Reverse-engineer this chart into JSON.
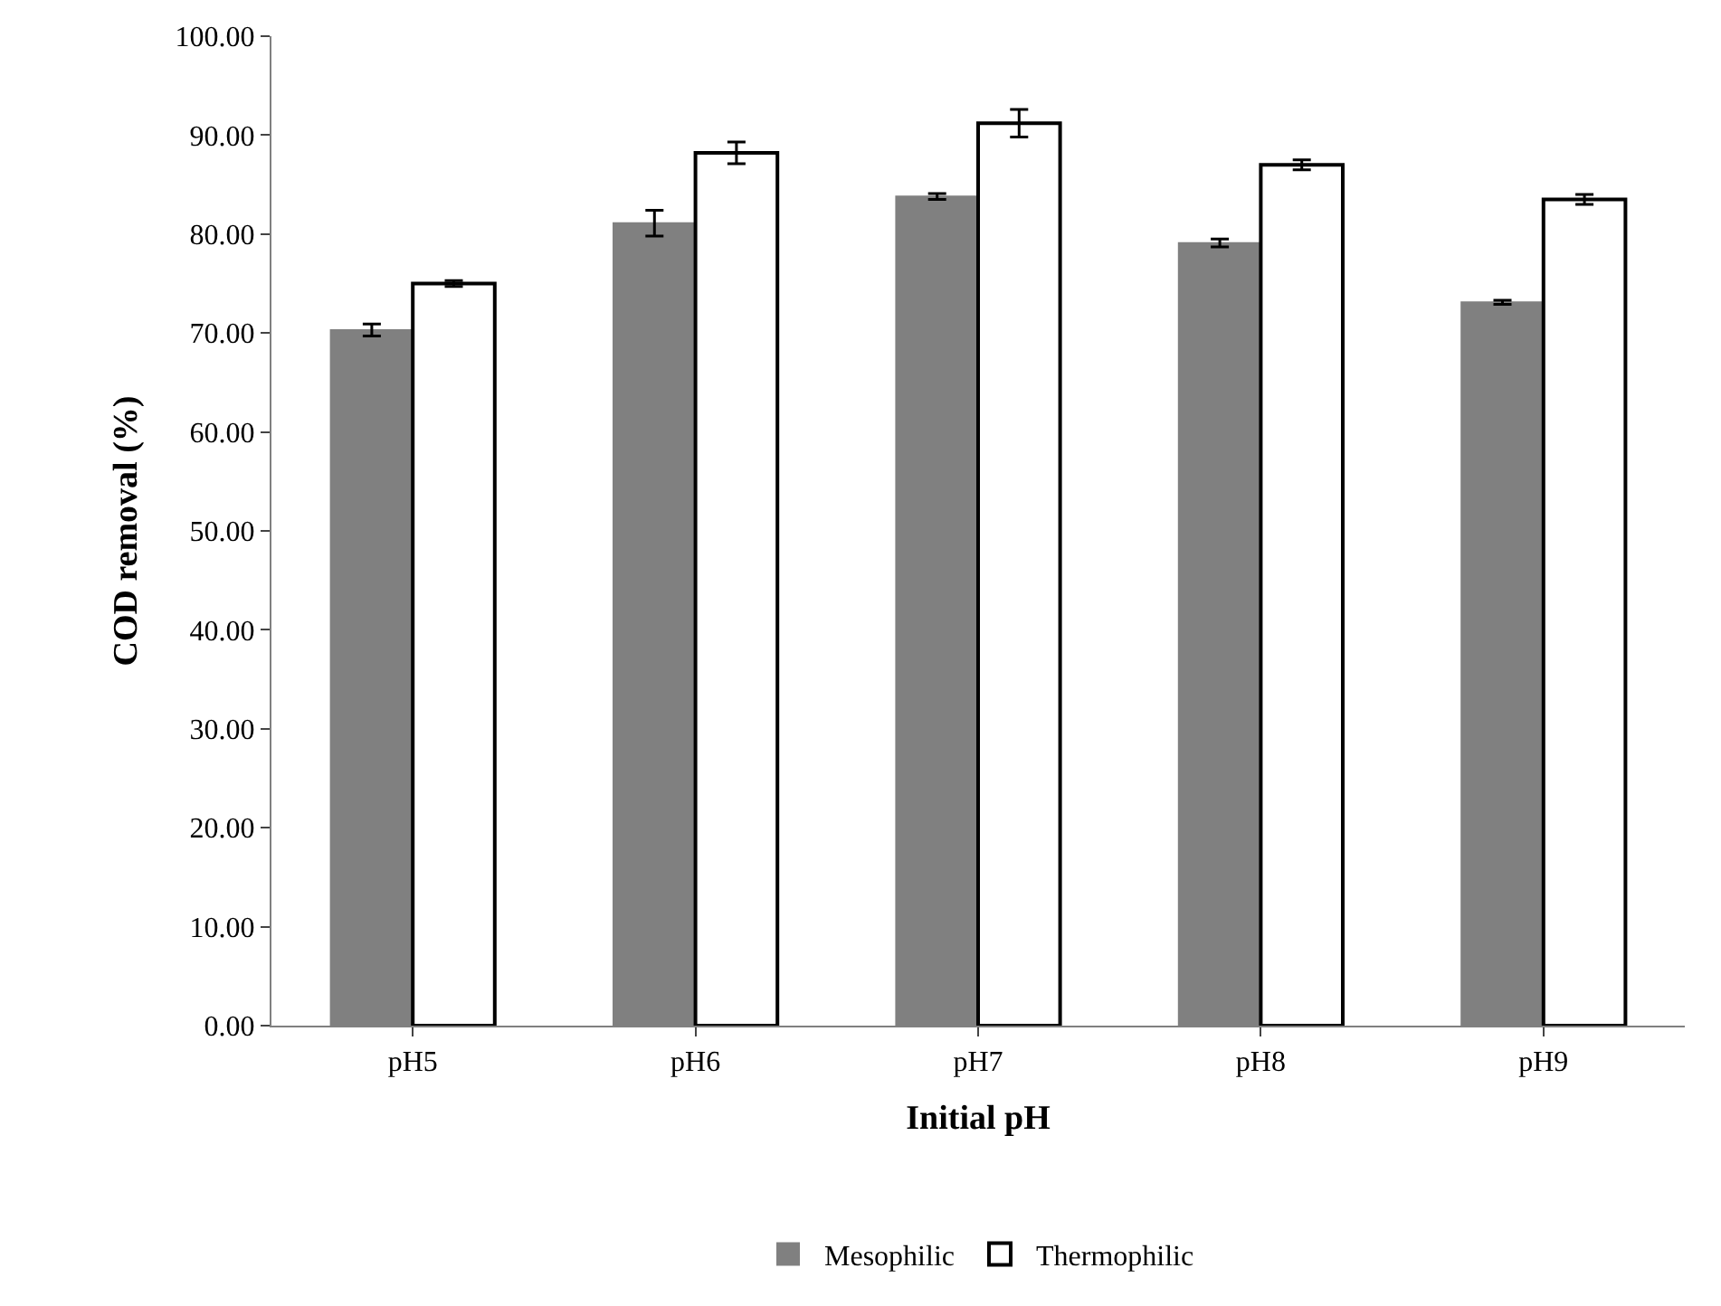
{
  "chart_data": {
    "type": "bar",
    "xlabel": "Initial pH",
    "ylabel": "COD removal (%)",
    "categories": [
      "pH5",
      "pH6",
      "pH7",
      "pH8",
      "pH9"
    ],
    "series": [
      {
        "name": "Mesophilic",
        "color": "#808080",
        "values": [
          70.3,
          81.1,
          83.8,
          79.1,
          73.1
        ],
        "errors": [
          0.6,
          1.3,
          0.3,
          0.4,
          0.2
        ]
      },
      {
        "name": "Thermophilic",
        "color": "#ffffff",
        "values": [
          75.0,
          88.2,
          91.2,
          87.0,
          83.5
        ],
        "errors": [
          0.3,
          1.1,
          1.4,
          0.5,
          0.5
        ]
      }
    ],
    "ylim": [
      0,
      100
    ],
    "yticks": [
      {
        "value": 0,
        "label": "0.00"
      },
      {
        "value": 10,
        "label": "10.00"
      },
      {
        "value": 20,
        "label": "20.00"
      },
      {
        "value": 30,
        "label": "30.00"
      },
      {
        "value": 40,
        "label": "40.00"
      },
      {
        "value": 50,
        "label": "50.00"
      },
      {
        "value": 60,
        "label": "60.00"
      },
      {
        "value": 70,
        "label": "70.00"
      },
      {
        "value": 80,
        "label": "80.00"
      },
      {
        "value": 90,
        "label": "90.00"
      },
      {
        "value": 100,
        "label": "100.00"
      }
    ],
    "legend": "bottom"
  }
}
